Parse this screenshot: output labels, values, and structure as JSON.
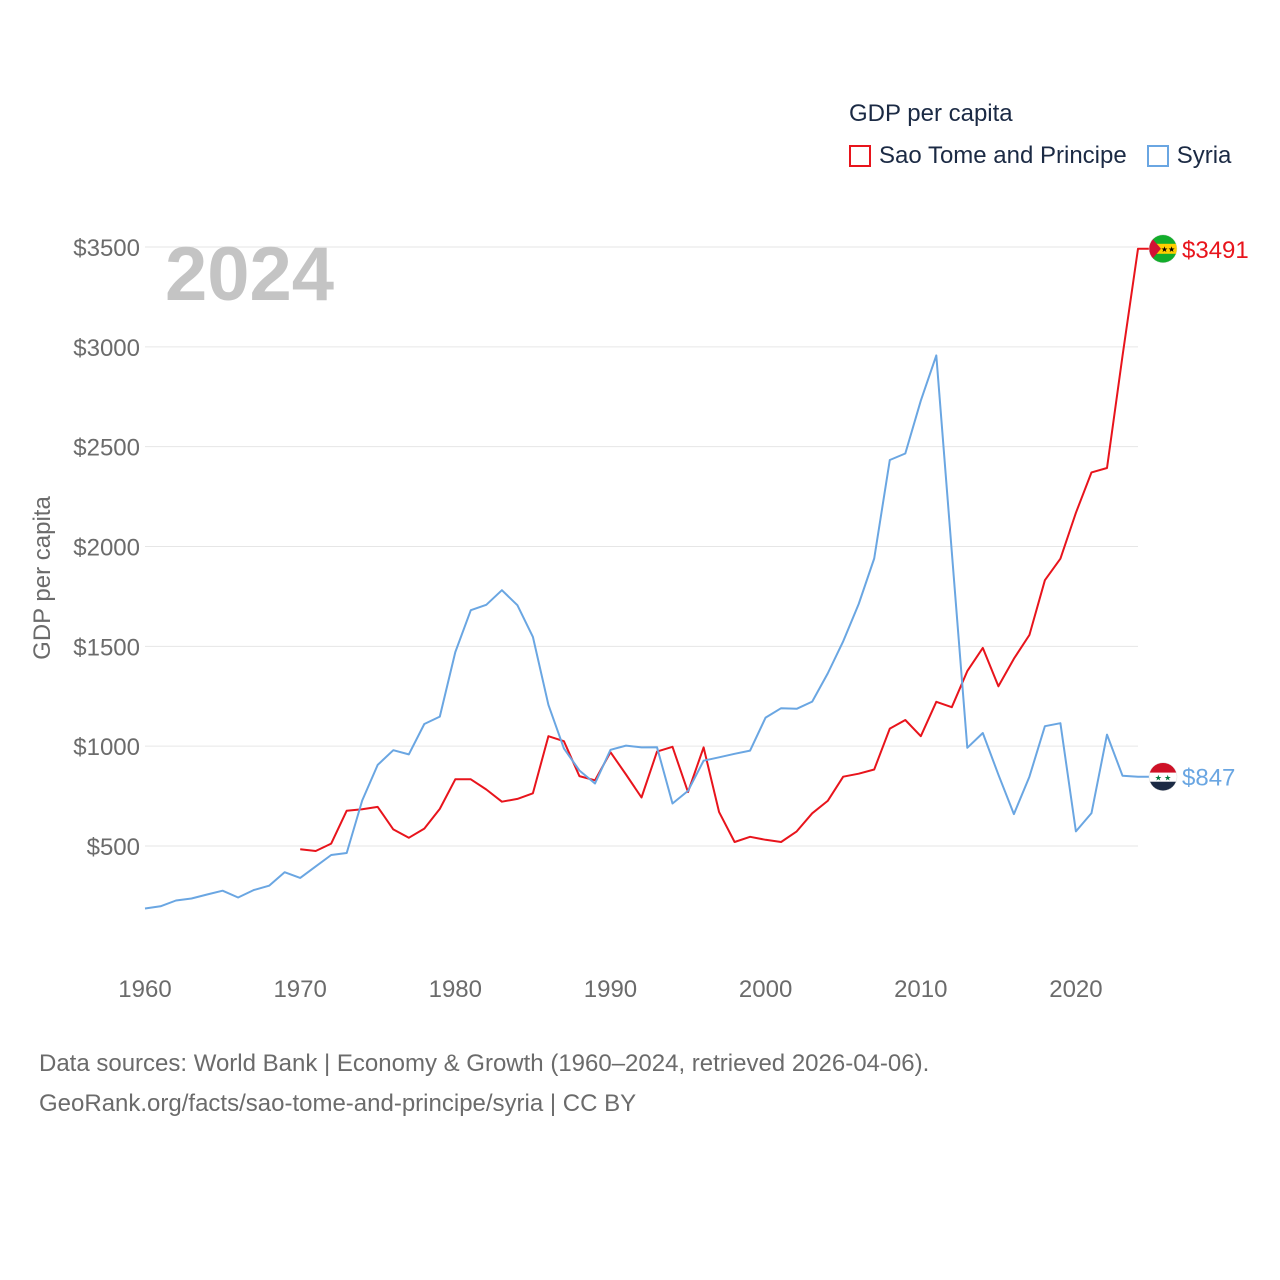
{
  "legend": {
    "title": "GDP per capita",
    "items": [
      {
        "label": "Sao Tome and Principe",
        "color": "#e8141c"
      },
      {
        "label": "Syria",
        "color": "#6aa6e2"
      }
    ]
  },
  "footer": {
    "line1": "Data sources: World Bank | Economy & Growth (1960–2024, retrieved 2026-04-06).",
    "line2": "GeoRank.org/facts/sao-tome-and-principe/syria | CC BY"
  },
  "chart_data": {
    "type": "line",
    "title": "GDP per capita",
    "year_label": "2024",
    "ylabel": "GDP per capita",
    "xlabel": "",
    "xlim": [
      1960,
      2024
    ],
    "ylim": [
      0,
      3500
    ],
    "x_ticks": [
      1960,
      1970,
      1980,
      1990,
      2000,
      2010,
      2020
    ],
    "y_ticks": [
      500,
      1000,
      1500,
      2000,
      2500,
      3000,
      3500
    ],
    "y_tick_labels": [
      "$500",
      "$1000",
      "$1500",
      "$2000",
      "$2500",
      "$3000",
      "$3500"
    ],
    "grid": true,
    "series": [
      {
        "name": "Sao Tome and Principe",
        "color": "#e8141c",
        "end_label": "$3491",
        "x": [
          1970,
          1971,
          1972,
          1973,
          1974,
          1975,
          1976,
          1977,
          1978,
          1979,
          1980,
          1981,
          1982,
          1983,
          1984,
          1985,
          1986,
          1987,
          1988,
          1989,
          1990,
          1991,
          1992,
          1993,
          1994,
          1995,
          1996,
          1997,
          1998,
          1999,
          2000,
          2001,
          2002,
          2003,
          2004,
          2005,
          2006,
          2007,
          2008,
          2009,
          2010,
          2011,
          2012,
          2013,
          2014,
          2015,
          2016,
          2017,
          2018,
          2019,
          2020,
          2021,
          2022,
          2023,
          2024
        ],
        "values": [
          484,
          475,
          512,
          677,
          684,
          696,
          583,
          541,
          587,
          686,
          834,
          834,
          783,
          722,
          736,
          764,
          1050,
          1025,
          850,
          829,
          970,
          858,
          743,
          973,
          997,
          770,
          994,
          670,
          520,
          546,
          531,
          520,
          573,
          664,
          726,
          847,
          862,
          883,
          1088,
          1131,
          1050,
          1222,
          1195,
          1376,
          1492,
          1300,
          1438,
          1557,
          1831,
          1939,
          2169,
          2371,
          2393,
          2954,
          3491
        ]
      },
      {
        "name": "Syria",
        "color": "#6aa6e2",
        "end_label": "$847",
        "x": [
          1960,
          1961,
          1962,
          1963,
          1964,
          1965,
          1966,
          1967,
          1968,
          1969,
          1970,
          1971,
          1972,
          1973,
          1974,
          1975,
          1976,
          1977,
          1978,
          1979,
          1980,
          1981,
          1982,
          1983,
          1984,
          1985,
          1986,
          1987,
          1988,
          1989,
          1990,
          1991,
          1992,
          1993,
          1994,
          1995,
          1996,
          1997,
          1998,
          1999,
          2000,
          2001,
          2002,
          2003,
          2004,
          2005,
          2006,
          2007,
          2008,
          2009,
          2010,
          2011,
          2012,
          2013,
          2014,
          2015,
          2016,
          2017,
          2018,
          2019,
          2020,
          2021,
          2022,
          2023,
          2024
        ],
        "values": [
          187,
          198,
          227,
          237,
          257,
          276,
          242,
          279,
          301,
          369,
          340,
          398,
          455,
          465,
          728,
          906,
          980,
          959,
          1111,
          1148,
          1471,
          1681,
          1708,
          1781,
          1706,
          1547,
          1207,
          989,
          878,
          813,
          982,
          1003,
          994,
          995,
          713,
          776,
          927,
          944,
          962,
          978,
          1143,
          1190,
          1187,
          1223,
          1364,
          1525,
          1712,
          1940,
          2433,
          2466,
          2730,
          2957,
          1973,
          992,
          1066,
          857,
          660,
          847,
          1100,
          1115,
          573,
          665,
          1058,
          852,
          847
        ]
      }
    ]
  }
}
